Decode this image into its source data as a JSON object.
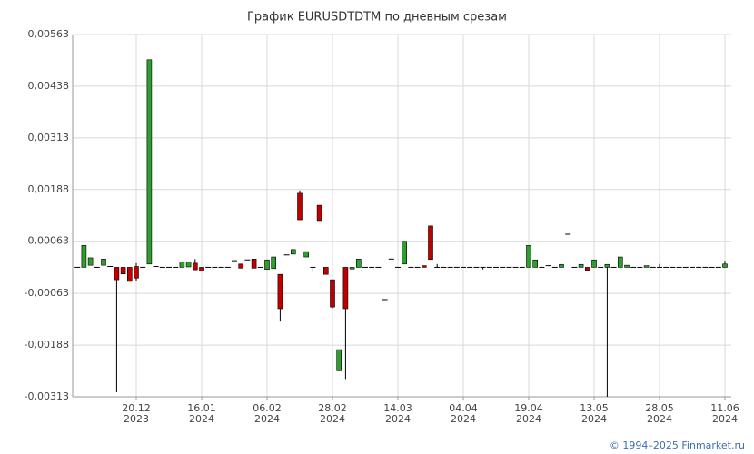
{
  "chart_data": {
    "type": "candlestick",
    "title": "График EURUSDTDTM по дневным срезам",
    "footer": "© 1994–2025 Finmarket.ru",
    "categories": [
      null,
      null,
      null,
      null,
      null,
      null,
      null,
      null,
      null,
      "20.12",
      null,
      null,
      null,
      null,
      null,
      null,
      null,
      null,
      null,
      "16.01",
      null,
      null,
      null,
      null,
      null,
      null,
      null,
      null,
      null,
      "06.02",
      null,
      null,
      null,
      null,
      null,
      null,
      null,
      null,
      null,
      "28.02",
      null,
      null,
      null,
      null,
      null,
      null,
      null,
      null,
      null,
      "14.03",
      null,
      null,
      null,
      null,
      null,
      null,
      null,
      null,
      null,
      "04.04",
      null,
      null,
      null,
      null,
      null,
      null,
      null,
      null,
      null,
      "19.04",
      null,
      null,
      null,
      null,
      null,
      null,
      null,
      null,
      null,
      "13.05",
      null,
      null,
      null,
      null,
      null,
      null,
      null,
      null,
      null,
      "28.05",
      null,
      null,
      null,
      null,
      null,
      null,
      null,
      null,
      null,
      "11.06"
    ],
    "category_years": [
      null,
      null,
      null,
      null,
      null,
      null,
      null,
      null,
      null,
      "2023",
      null,
      null,
      null,
      null,
      null,
      null,
      null,
      null,
      null,
      "2024",
      null,
      null,
      null,
      null,
      null,
      null,
      null,
      null,
      null,
      "2024",
      null,
      null,
      null,
      null,
      null,
      null,
      null,
      null,
      null,
      "2024",
      null,
      null,
      null,
      null,
      null,
      null,
      null,
      null,
      null,
      "2024",
      null,
      null,
      null,
      null,
      null,
      null,
      null,
      null,
      null,
      "2024",
      null,
      null,
      null,
      null,
      null,
      null,
      null,
      null,
      null,
      "2024",
      null,
      null,
      null,
      null,
      null,
      null,
      null,
      null,
      null,
      "2024",
      null,
      null,
      null,
      null,
      null,
      null,
      null,
      null,
      null,
      "2024",
      null,
      null,
      null,
      null,
      null,
      null,
      null,
      null,
      null,
      "2024"
    ],
    "open": [
      0,
      0,
      5e-05,
      0,
      5e-05,
      2e-05,
      0,
      0,
      0,
      2e-05,
      0,
      8e-05,
      2e-05,
      0,
      0,
      0,
      0,
      1e-05,
      0.0001,
      0,
      0,
      0,
      0,
      0,
      0.00016,
      8e-05,
      0.00018,
      0.0002,
      0,
      -5e-05,
      -3e-05,
      -0.00017,
      0.0003,
      0.00032,
      0.00179,
      0.00025,
      0,
      0.0015,
      0,
      -0.0003,
      -0.0025,
      0,
      -4e-05,
      0,
      0,
      0,
      0,
      -0.00078,
      0.0002,
      0,
      8e-05,
      0,
      0,
      4e-05,
      0.001,
      0,
      0,
      0,
      0,
      0,
      0,
      0,
      0,
      0,
      0,
      0,
      0,
      0,
      0,
      0,
      0,
      0,
      4e-05,
      0,
      0,
      0.0008,
      0,
      0,
      0,
      0,
      0,
      0,
      0,
      0,
      0,
      0,
      0,
      0,
      0,
      0,
      0,
      0,
      0,
      0,
      0,
      0,
      0,
      0,
      0,
      0
    ],
    "high": [
      0,
      0.00053,
      0.00023,
      0,
      0.0002,
      2e-05,
      0,
      0,
      0,
      0.0001,
      0,
      0.00502,
      2e-05,
      0,
      0,
      0,
      0.00013,
      0.00013,
      0.0002,
      0,
      0,
      0,
      0,
      0,
      0.00016,
      8e-05,
      0.00018,
      0.0002,
      0,
      0.00018,
      0.00025,
      -0.00017,
      0.0003,
      0.00043,
      0.00186,
      0.00038,
      0,
      0.0015,
      0,
      -0.0003,
      -0.00199,
      0,
      0,
      0.0002,
      0,
      0,
      0,
      -0.00078,
      0.0002,
      0,
      0.00063,
      0,
      0,
      4e-05,
      0.001,
      8e-05,
      0,
      0,
      0,
      0,
      0,
      0,
      0,
      0,
      0,
      0,
      0,
      0,
      0,
      0.00053,
      0.00018,
      0,
      4e-05,
      0,
      7e-05,
      0.0008,
      0,
      7e-05,
      0,
      0.00018,
      0,
      7e-05,
      0,
      0.00025,
      5e-05,
      0,
      0,
      4e-05,
      0,
      8e-05,
      0,
      0,
      0,
      0,
      0,
      0,
      0,
      0,
      0,
      0.00016
    ],
    "low": [
      0,
      0,
      5e-05,
      0,
      5e-05,
      2e-05,
      -0.00302,
      -0.00016,
      -0.00034,
      -0.00034,
      0,
      8e-05,
      2e-05,
      0,
      0,
      0,
      0,
      1e-05,
      -6e-05,
      -9e-05,
      0,
      0,
      0,
      0,
      0.00016,
      -2e-05,
      0.00018,
      -2e-05,
      0,
      -5e-05,
      -3e-05,
      -0.00131,
      0.0003,
      0.00032,
      0.00115,
      0.00025,
      -0.00012,
      0.00113,
      -0.00017,
      -0.00099,
      -0.0025,
      -0.0027,
      -4e-05,
      0,
      0,
      0,
      0,
      -0.00078,
      0.0002,
      0,
      8e-05,
      0,
      0,
      0,
      0.00019,
      0,
      0,
      0,
      0,
      0,
      0,
      0,
      -5e-05,
      0,
      0,
      0,
      0,
      0,
      0,
      0,
      0,
      0,
      4e-05,
      0,
      0,
      0.0008,
      0,
      0,
      -7e-05,
      0,
      0,
      -0.00313,
      0,
      0,
      0,
      0,
      0,
      0,
      0,
      0,
      0,
      0,
      0,
      0,
      0,
      0,
      0,
      0,
      0,
      0
    ],
    "close": [
      0,
      0.00053,
      0.00023,
      0,
      0.0002,
      2e-05,
      -0.0003,
      -0.00016,
      -0.00034,
      -0.00026,
      0,
      0.00502,
      2e-05,
      0,
      0,
      0,
      0.00013,
      0.00013,
      -6e-05,
      -9e-05,
      0,
      0,
      0,
      0,
      0.00016,
      -2e-05,
      0.00018,
      -2e-05,
      0,
      0.00018,
      0.00025,
      -0.001,
      0.0003,
      0.00043,
      0.00115,
      0.00038,
      0,
      0.00113,
      -0.00017,
      -0.00096,
      -0.00199,
      -0.001,
      0,
      0.0002,
      0,
      0,
      0,
      -0.00078,
      0.0002,
      0,
      0.00063,
      0,
      0,
      0,
      0.00019,
      0,
      0,
      0,
      0,
      0,
      0,
      0,
      0,
      0,
      0,
      0,
      0,
      0,
      0,
      0.00053,
      0.00018,
      0,
      4e-05,
      0,
      7e-05,
      0.0008,
      0,
      7e-05,
      -7e-05,
      0.00018,
      0,
      7e-05,
      0,
      0.00025,
      5e-05,
      0,
      0,
      4e-05,
      0,
      0,
      0,
      0,
      0,
      0,
      0,
      0,
      0,
      0,
      0,
      8e-05
    ],
    "up_color": "#2e9e2e",
    "down_color": "#c00000",
    "ylim": [
      -0.00313,
      0.00563
    ],
    "yticks": [
      {
        "value": -0.00313,
        "label": "-0,00313"
      },
      {
        "value": -0.00188,
        "label": "-0,00188"
      },
      {
        "value": -0.00063,
        "label": "-0,00063"
      },
      {
        "value": 0.00063,
        "label": "0,00063"
      },
      {
        "value": 0.00188,
        "label": "0,00188"
      },
      {
        "value": 0.00313,
        "label": "0,00313"
      },
      {
        "value": 0.00438,
        "label": "0,00438"
      },
      {
        "value": 0.00563,
        "label": "0,00563"
      }
    ],
    "grid": true
  }
}
